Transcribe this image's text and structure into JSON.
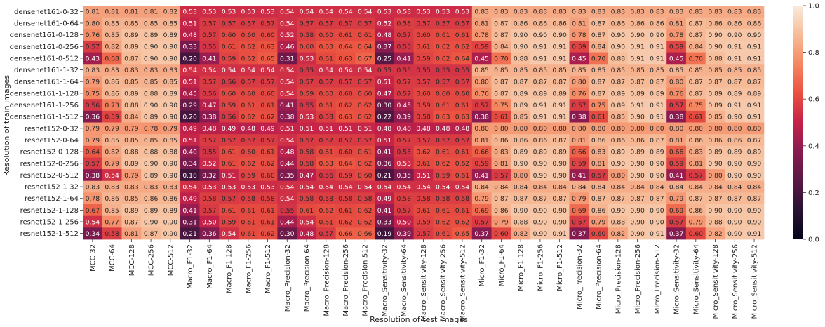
{
  "chart_data": {
    "type": "heatmap",
    "title": "",
    "xlabel": "Resolution of test images",
    "ylabel": "Resolution of train images",
    "rows": [
      "densenet161-0-32",
      "densenet161-0-64",
      "densenet161-0-128",
      "densenet161-0-256",
      "densenet161-0-512",
      "densenet161-1-32",
      "densenet161-1-64",
      "densenet161-1-128",
      "densenet161-1-256",
      "densenet161-1-512",
      "resnet152-0-32",
      "resnet152-0-64",
      "resnet152-0-128",
      "resnet152-0-256",
      "resnet152-0-512",
      "resnet152-1-32",
      "resnet152-1-64",
      "resnet152-1-128",
      "resnet152-1-256",
      "resnet152-1-512"
    ],
    "columns": [
      "MCC-32",
      "MCC-64",
      "MCC-128",
      "MCC-256",
      "MCC-512",
      "Macro_F1-32",
      "Macro_F1-64",
      "Macro_F1-128",
      "Macro_F1-256",
      "Macro_F1-512",
      "Macro_Precision-32",
      "Macro_Precision-64",
      "Macro_Precision-128",
      "Macro_Precision-256",
      "Macro_Precision-512",
      "Macro_Sensitivity-32",
      "Macro_Sensitivity-64",
      "Macro_Sensitivity-128",
      "Macro_Sensitivity-256",
      "Macro_Sensitivity-512",
      "Micro_F1-32",
      "Micro_F1-64",
      "Micro_F1-128",
      "Micro_F1-256",
      "Micro_F1-512",
      "Micro_Precision-32",
      "Micro_Precision-64",
      "Micro_Precision-128",
      "Micro_Precision-256",
      "Micro_Precision-512",
      "Micro_Sensitivity-32",
      "Micro_Sensitivity-64",
      "Micro_Sensitivity-128",
      "Micro_Sensitivity-256",
      "Micro_Sensitivity-512"
    ],
    "values": [
      [
        0.81,
        0.81,
        0.81,
        0.81,
        0.82,
        0.53,
        0.53,
        0.53,
        0.53,
        0.53,
        0.54,
        0.54,
        0.54,
        0.54,
        0.54,
        0.53,
        0.53,
        0.53,
        0.53,
        0.53,
        0.83,
        0.83,
        0.83,
        0.83,
        0.83,
        0.83,
        0.83,
        0.83,
        0.83,
        0.83,
        0.83,
        0.83,
        0.83,
        0.83,
        0.83
      ],
      [
        0.8,
        0.85,
        0.85,
        0.85,
        0.85,
        0.51,
        0.57,
        0.57,
        0.57,
        0.57,
        0.54,
        0.57,
        0.57,
        0.57,
        0.57,
        0.52,
        0.58,
        0.57,
        0.57,
        0.57,
        0.81,
        0.87,
        0.86,
        0.86,
        0.86,
        0.81,
        0.87,
        0.86,
        0.86,
        0.86,
        0.81,
        0.87,
        0.86,
        0.86,
        0.86
      ],
      [
        0.76,
        0.85,
        0.89,
        0.89,
        0.89,
        0.48,
        0.57,
        0.6,
        0.6,
        0.6,
        0.52,
        0.58,
        0.6,
        0.61,
        0.61,
        0.48,
        0.57,
        0.6,
        0.61,
        0.61,
        0.78,
        0.87,
        0.9,
        0.9,
        0.9,
        0.78,
        0.87,
        0.9,
        0.9,
        0.9,
        0.78,
        0.87,
        0.9,
        0.9,
        0.9
      ],
      [
        0.57,
        0.82,
        0.89,
        0.9,
        0.9,
        0.33,
        0.55,
        0.61,
        0.62,
        0.63,
        0.46,
        0.6,
        0.63,
        0.64,
        0.64,
        0.37,
        0.55,
        0.61,
        0.62,
        0.62,
        0.59,
        0.84,
        0.9,
        0.91,
        0.91,
        0.59,
        0.84,
        0.9,
        0.91,
        0.91,
        0.59,
        0.84,
        0.9,
        0.91,
        0.91
      ],
      [
        0.43,
        0.68,
        0.87,
        0.9,
        0.9,
        0.2,
        0.41,
        0.59,
        0.62,
        0.65,
        0.31,
        0.53,
        0.61,
        0.63,
        0.67,
        0.25,
        0.41,
        0.59,
        0.62,
        0.64,
        0.45,
        0.7,
        0.88,
        0.91,
        0.91,
        0.45,
        0.7,
        0.88,
        0.91,
        0.91,
        0.45,
        0.7,
        0.88,
        0.91,
        0.91
      ],
      [
        0.83,
        0.83,
        0.83,
        0.83,
        0.83,
        0.54,
        0.54,
        0.54,
        0.54,
        0.54,
        0.54,
        0.55,
        0.54,
        0.54,
        0.54,
        0.55,
        0.55,
        0.55,
        0.55,
        0.55,
        0.85,
        0.85,
        0.85,
        0.85,
        0.85,
        0.85,
        0.85,
        0.85,
        0.85,
        0.85,
        0.85,
        0.85,
        0.85,
        0.85,
        0.85
      ],
      [
        0.79,
        0.86,
        0.85,
        0.85,
        0.85,
        0.51,
        0.57,
        0.56,
        0.57,
        0.57,
        0.54,
        0.57,
        0.57,
        0.57,
        0.57,
        0.51,
        0.57,
        0.57,
        0.57,
        0.57,
        0.8,
        0.87,
        0.87,
        0.87,
        0.87,
        0.8,
        0.87,
        0.87,
        0.87,
        0.87,
        0.8,
        0.87,
        0.87,
        0.87,
        0.87
      ],
      [
        0.75,
        0.86,
        0.89,
        0.88,
        0.89,
        0.45,
        0.56,
        0.6,
        0.6,
        0.6,
        0.54,
        0.59,
        0.6,
        0.6,
        0.6,
        0.47,
        0.57,
        0.6,
        0.6,
        0.6,
        0.76,
        0.87,
        0.89,
        0.89,
        0.89,
        0.76,
        0.87,
        0.89,
        0.89,
        0.89,
        0.76,
        0.87,
        0.89,
        0.89,
        0.89
      ],
      [
        0.56,
        0.73,
        0.88,
        0.9,
        0.9,
        0.29,
        0.47,
        0.59,
        0.61,
        0.61,
        0.41,
        0.55,
        0.61,
        0.62,
        0.62,
        0.3,
        0.45,
        0.59,
        0.61,
        0.61,
        0.57,
        0.75,
        0.89,
        0.91,
        0.91,
        0.57,
        0.75,
        0.89,
        0.91,
        0.91,
        0.57,
        0.75,
        0.89,
        0.91,
        0.91
      ],
      [
        0.36,
        0.59,
        0.84,
        0.89,
        0.9,
        0.2,
        0.38,
        0.56,
        0.62,
        0.62,
        0.38,
        0.53,
        0.58,
        0.63,
        0.62,
        0.22,
        0.39,
        0.58,
        0.63,
        0.63,
        0.38,
        0.61,
        0.85,
        0.91,
        0.91,
        0.38,
        0.61,
        0.85,
        0.9,
        0.91,
        0.38,
        0.61,
        0.85,
        0.9,
        0.91
      ],
      [
        0.79,
        0.79,
        0.79,
        0.78,
        0.79,
        0.49,
        0.48,
        0.49,
        0.48,
        0.49,
        0.51,
        0.51,
        0.51,
        0.51,
        0.51,
        0.48,
        0.48,
        0.48,
        0.48,
        0.48,
        0.8,
        0.8,
        0.8,
        0.8,
        0.8,
        0.8,
        0.8,
        0.8,
        0.8,
        0.8,
        0.8,
        0.8,
        0.8,
        0.8,
        0.8
      ],
      [
        0.79,
        0.85,
        0.85,
        0.85,
        0.85,
        0.51,
        0.57,
        0.57,
        0.57,
        0.57,
        0.54,
        0.57,
        0.57,
        0.57,
        0.57,
        0.51,
        0.57,
        0.57,
        0.57,
        0.57,
        0.81,
        0.86,
        0.86,
        0.86,
        0.87,
        0.81,
        0.86,
        0.86,
        0.86,
        0.87,
        0.81,
        0.86,
        0.86,
        0.86,
        0.87
      ],
      [
        0.64,
        0.82,
        0.88,
        0.88,
        0.88,
        0.4,
        0.55,
        0.61,
        0.6,
        0.61,
        0.48,
        0.58,
        0.61,
        0.6,
        0.61,
        0.41,
        0.55,
        0.62,
        0.61,
        0.61,
        0.66,
        0.83,
        0.89,
        0.89,
        0.89,
        0.66,
        0.83,
        0.89,
        0.89,
        0.89,
        0.66,
        0.83,
        0.89,
        0.89,
        0.89
      ],
      [
        0.57,
        0.79,
        0.89,
        0.9,
        0.9,
        0.34,
        0.52,
        0.61,
        0.62,
        0.62,
        0.44,
        0.58,
        0.63,
        0.64,
        0.62,
        0.36,
        0.53,
        0.61,
        0.62,
        0.62,
        0.59,
        0.81,
        0.9,
        0.9,
        0.9,
        0.59,
        0.81,
        0.9,
        0.9,
        0.9,
        0.59,
        0.81,
        0.9,
        0.9,
        0.9
      ],
      [
        0.38,
        0.54,
        0.79,
        0.89,
        0.9,
        0.18,
        0.32,
        0.51,
        0.59,
        0.6,
        0.35,
        0.47,
        0.56,
        0.59,
        0.6,
        0.21,
        0.35,
        0.51,
        0.59,
        0.61,
        0.41,
        0.57,
        0.8,
        0.9,
        0.9,
        0.41,
        0.57,
        0.8,
        0.9,
        0.9,
        0.41,
        0.57,
        0.8,
        0.9,
        0.9
      ],
      [
        0.83,
        0.83,
        0.83,
        0.83,
        0.83,
        0.54,
        0.53,
        0.53,
        0.53,
        0.53,
        0.54,
        0.54,
        0.54,
        0.54,
        0.54,
        0.54,
        0.54,
        0.54,
        0.54,
        0.54,
        0.84,
        0.84,
        0.84,
        0.84,
        0.84,
        0.84,
        0.84,
        0.84,
        0.84,
        0.84,
        0.84,
        0.84,
        0.84,
        0.84,
        0.84
      ],
      [
        0.78,
        0.86,
        0.85,
        0.86,
        0.86,
        0.49,
        0.58,
        0.57,
        0.58,
        0.58,
        0.54,
        0.58,
        0.58,
        0.58,
        0.58,
        0.49,
        0.58,
        0.58,
        0.58,
        0.58,
        0.79,
        0.87,
        0.87,
        0.87,
        0.87,
        0.79,
        0.87,
        0.87,
        0.87,
        0.87,
        0.79,
        0.87,
        0.87,
        0.87,
        0.87
      ],
      [
        0.67,
        0.85,
        0.89,
        0.89,
        0.89,
        0.41,
        0.57,
        0.61,
        0.61,
        0.61,
        0.55,
        0.61,
        0.62,
        0.61,
        0.62,
        0.41,
        0.57,
        0.61,
        0.61,
        0.61,
        0.69,
        0.86,
        0.9,
        0.9,
        0.9,
        0.69,
        0.86,
        0.9,
        0.9,
        0.9,
        0.69,
        0.86,
        0.9,
        0.9,
        0.9
      ],
      [
        0.54,
        0.77,
        0.87,
        0.9,
        0.9,
        0.31,
        0.5,
        0.59,
        0.61,
        0.61,
        0.44,
        0.54,
        0.61,
        0.62,
        0.62,
        0.33,
        0.5,
        0.59,
        0.62,
        0.62,
        0.57,
        0.79,
        0.88,
        0.9,
        0.9,
        0.57,
        0.79,
        0.88,
        0.9,
        0.9,
        0.57,
        0.79,
        0.88,
        0.9,
        0.9
      ],
      [
        0.34,
        0.58,
        0.81,
        0.87,
        0.9,
        0.21,
        0.36,
        0.54,
        0.61,
        0.62,
        0.3,
        0.48,
        0.57,
        0.66,
        0.66,
        0.19,
        0.39,
        0.57,
        0.61,
        0.65,
        0.37,
        0.6,
        0.82,
        0.9,
        0.91,
        0.37,
        0.6,
        0.82,
        0.9,
        0.91,
        0.37,
        0.6,
        0.82,
        0.9,
        0.91
      ]
    ],
    "colorbar": {
      "ticks": [
        "0.0",
        "0.2",
        "0.4",
        "0.6",
        "0.8",
        "1.0"
      ],
      "vmin": 0.0,
      "vmax": 1.0,
      "colormap": "rocket"
    },
    "grid": false,
    "legend": "colorbar-right"
  }
}
